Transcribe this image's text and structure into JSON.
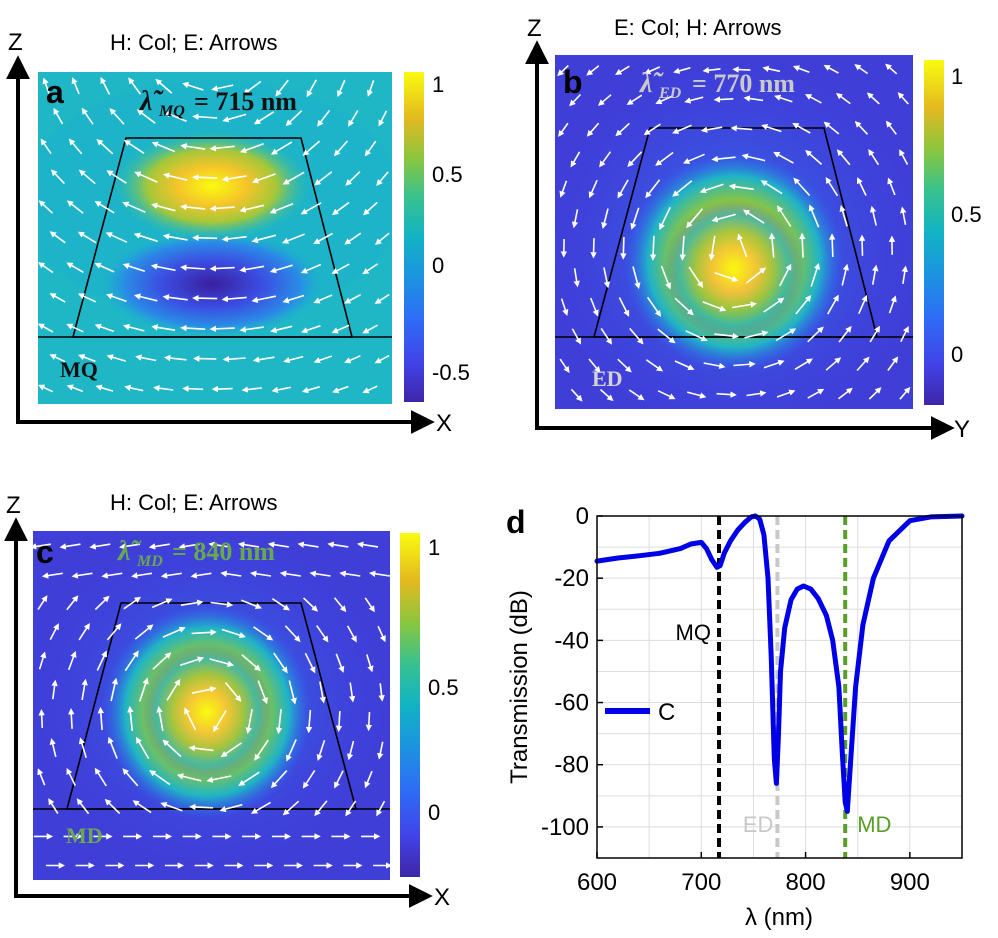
{
  "panels": [
    {
      "letter": "a",
      "title": "H: Col; E: Arrows",
      "vertical_axis": "Z",
      "horizontal_axis": "X",
      "lambda_sub": "MQ",
      "lambda_value": "= 715 nm",
      "mode_label": "MQ",
      "colorbar_ticks": [
        "1",
        "0.5",
        "0",
        "-0.5"
      ],
      "colorbar_range": [
        -0.7,
        1.1
      ],
      "field": "magnetic quadrupole: positive lobe top, negative lobe bottom"
    },
    {
      "letter": "b",
      "title": "E: Col; H: Arrows",
      "vertical_axis": "Z",
      "horizontal_axis": "Y",
      "lambda_sub": "ED",
      "lambda_value": "= 770 nm",
      "mode_label": "ED",
      "colorbar_ticks": [
        "1",
        "0.5",
        "0"
      ],
      "colorbar_range": [
        -0.15,
        1.05
      ]
    },
    {
      "letter": "c",
      "title": "H: Col; E: Arrows",
      "vertical_axis": "Z",
      "horizontal_axis": "X",
      "lambda_sub": "MD",
      "lambda_value": "= 840 nm",
      "mode_label": "MD",
      "colorbar_ticks": [
        "1",
        "0.5",
        "0"
      ],
      "colorbar_range": [
        -0.15,
        1.05
      ]
    }
  ],
  "chart_data": {
    "type": "line",
    "panel_letter": "d",
    "xlabel": "λ (nm)",
    "ylabel": "Transmission (dB)",
    "xlim": [
      600,
      950
    ],
    "ylim": [
      -110,
      0
    ],
    "xticks": [
      600,
      700,
      800,
      900
    ],
    "yticks": [
      0,
      -20,
      -40,
      -60,
      -80,
      -100
    ],
    "grid": true,
    "legend_position": "left",
    "series": [
      {
        "name": "C",
        "color": "#0000e6",
        "x": [
          600,
          620,
          640,
          660,
          680,
          690,
          700,
          705,
          710,
          715,
          718,
          722,
          728,
          735,
          742,
          748,
          752,
          756,
          760,
          764,
          767,
          770,
          772,
          774,
          776,
          780,
          786,
          792,
          798,
          805,
          812,
          820,
          826,
          832,
          835,
          838,
          840,
          843,
          848,
          855,
          865,
          880,
          900,
          920,
          950
        ],
        "y": [
          -14.5,
          -13.5,
          -12.8,
          -12,
          -10.5,
          -9,
          -8.5,
          -10.5,
          -14,
          -16.5,
          -16,
          -12,
          -8,
          -4.5,
          -2,
          -0.3,
          0,
          -1,
          -6,
          -20,
          -45,
          -78,
          -86,
          -70,
          -50,
          -36,
          -27,
          -23.5,
          -22.5,
          -23.5,
          -26.5,
          -32,
          -40,
          -55,
          -75,
          -92,
          -95,
          -80,
          -55,
          -35,
          -20,
          -8,
          -1.5,
          -0.3,
          0
        ]
      }
    ],
    "vlines": [
      {
        "label": "MQ",
        "x": 717,
        "color": "#000000"
      },
      {
        "label": "ED",
        "x": 773,
        "color": "#c8c8c8"
      },
      {
        "label": "MD",
        "x": 838,
        "color": "#5a9e2a"
      }
    ],
    "tick_labels_x": [
      "600",
      "700",
      "800",
      "900"
    ],
    "tick_labels_y": [
      "0",
      "-20",
      "-40",
      "-60",
      "-80",
      "-100"
    ]
  },
  "colors": {
    "axis": "#000000",
    "mode_label_ed": "#d2d2d2",
    "mode_label_md": "#6aa84f",
    "lambda_ed": "#c9c9c9",
    "lambda_md": "#6aa84f"
  }
}
